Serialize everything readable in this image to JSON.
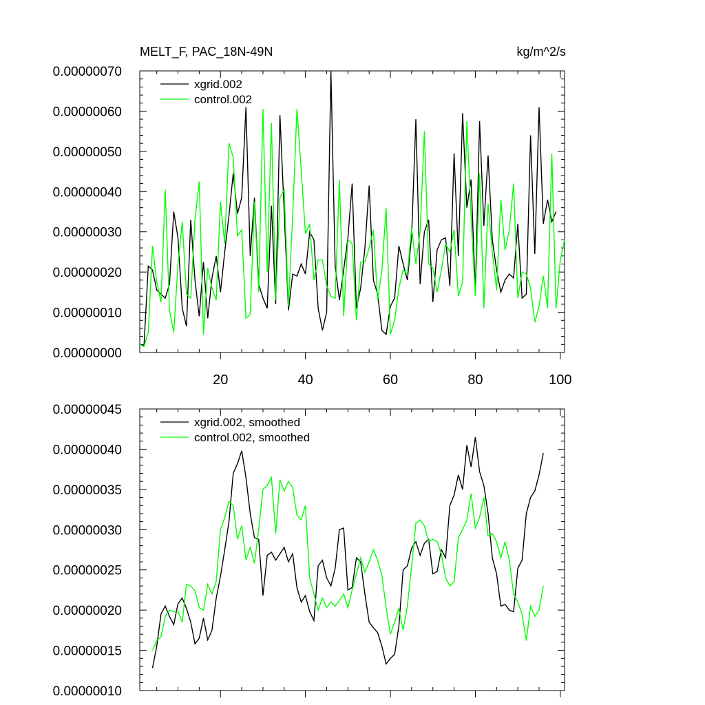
{
  "figure": {
    "title": "MELT_F, PAC_18N-49N",
    "units": "kg/m^2/s"
  },
  "chart_data": [
    {
      "type": "line",
      "title": "MELT_F, PAC_18N-49N",
      "units_label": "kg/m^2/s",
      "xlim": [
        1,
        101
      ],
      "ylim": [
        0,
        7e-07
      ],
      "xticks": [
        20,
        40,
        60,
        80,
        100
      ],
      "xtick_labels": [
        "20",
        "40",
        "60",
        "80",
        "100"
      ],
      "yticks": [
        0,
        1e-07,
        2e-07,
        3e-07,
        4e-07,
        5e-07,
        6e-07,
        7e-07
      ],
      "ytick_labels": [
        "0.00000000",
        "0.00000010",
        "0.00000020",
        "0.00000030",
        "0.00000040",
        "0.00000050",
        "0.00000060",
        "0.00000070"
      ],
      "legend": "top-left",
      "x_start": 1,
      "series": [
        {
          "name": "xgrid.002",
          "color": "#000000",
          "values": [
            2e-08,
            1.8e-08,
            2.15e-07,
            2.05e-07,
            1.55e-07,
            1.45e-07,
            1.35e-07,
            1.7e-07,
            3.5e-07,
            2.85e-07,
            1.1e-07,
            6.5e-08,
            3.3e-07,
            1.8e-07,
            9e-08,
            2.25e-07,
            8.5e-08,
            1.85e-07,
            2.4e-07,
            1.5e-07,
            2.5e-07,
            3.4e-07,
            4.45e-07,
            3.45e-07,
            3.85e-07,
            6.1e-07,
            2.4e-07,
            3.85e-07,
            1.7e-07,
            1.35e-07,
            1.1e-07,
            3.65e-07,
            1.2e-07,
            5.9e-07,
            3.5e-07,
            1.05e-07,
            1.95e-07,
            1.9e-07,
            2.2e-07,
            1.95e-07,
            3e-07,
            2.8e-07,
            1.1e-07,
            5.5e-08,
            1e-07,
            7e-07,
            2.15e-07,
            1.3e-07,
            2.05e-07,
            2.85e-07,
            4.2e-07,
            1.1e-07,
            1.6e-07,
            2.6e-07,
            4.15e-07,
            1.8e-07,
            1.45e-07,
            5.5e-08,
            4.5e-08,
            1.15e-07,
            1.35e-07,
            2.65e-07,
            2.2e-07,
            1.8e-07,
            2.9e-07,
            5.8e-07,
            1.7e-07,
            3e-07,
            3.3e-07,
            1.25e-07,
            2.55e-07,
            2.8e-07,
            2.85e-07,
            1.65e-07,
            4.95e-07,
            2.4e-07,
            5.95e-07,
            3.6e-07,
            4.3e-07,
            1.5e-07,
            5.75e-07,
            3.15e-07,
            4.9e-07,
            2.8e-07,
            2.05e-07,
            1.5e-07,
            1.8e-07,
            1.95e-07,
            1.85e-07,
            3.2e-07,
            1.35e-07,
            1.45e-07,
            5.4e-07,
            2.45e-07,
            6.1e-07,
            3.2e-07,
            3.8e-07,
            3.25e-07,
            3.5e-07
          ]
        },
        {
          "name": "control.002",
          "color": "#00ff00",
          "values": [
            2e-08,
            1.5e-08,
            5e-08,
            2.65e-07,
            1.75e-07,
            1.25e-07,
            4.05e-07,
            1.05e-07,
            5e-08,
            2.2e-07,
            3.25e-07,
            1.45e-07,
            1.35e-07,
            3.3e-07,
            4.25e-07,
            4.5e-08,
            2.1e-07,
            1.6e-07,
            1.3e-07,
            3.75e-07,
            2.7e-07,
            5.2e-07,
            4.85e-07,
            2.9e-07,
            3.05e-07,
            8.5e-08,
            9.5e-08,
            3.75e-07,
            1.5e-07,
            6.05e-07,
            2e-07,
            5.7e-07,
            1.3e-07,
            3.85e-07,
            4.05e-07,
            1.15e-07,
            3.4e-07,
            6.05e-07,
            4.55e-07,
            2.95e-07,
            3.2e-07,
            1.8e-07,
            2.3e-07,
            2.3e-07,
            1.65e-07,
            1.4e-07,
            1.35e-07,
            4.3e-07,
            9e-08,
            2.8e-07,
            2.7e-07,
            8e-08,
            2.25e-07,
            2.25e-07,
            2.6e-07,
            3.05e-07,
            1.3e-07,
            2.05e-07,
            3.6e-07,
            4.5e-08,
            8e-08,
            1.6e-07,
            2.05e-07,
            1.95e-07,
            3.1e-07,
            2.2e-07,
            3e-07,
            5.5e-07,
            2.2e-07,
            2.1e-07,
            1.5e-07,
            2.05e-07,
            2.7e-07,
            2.5e-07,
            3.05e-07,
            1.4e-07,
            1.75e-07,
            5.75e-07,
            3.35e-07,
            1.4e-07,
            4.45e-07,
            1.1e-07,
            3.7e-07,
            2.5e-07,
            1.55e-07,
            3.8e-07,
            2.55e-07,
            3.05e-07,
            4.2e-07,
            1.35e-07,
            2e-07,
            1.95e-07,
            1.6e-07,
            7.5e-08,
            1.15e-07,
            1.9e-07,
            1.1e-07,
            4.95e-07,
            1.1e-07,
            2.3e-07,
            2.8e-07
          ]
        }
      ]
    },
    {
      "type": "line",
      "xlim": [
        1,
        101
      ],
      "ylim": [
        1e-07,
        4.5e-07
      ],
      "xticks": [
        20,
        40,
        60,
        80,
        100
      ],
      "yticks": [
        1e-07,
        1.5e-07,
        2e-07,
        2.5e-07,
        3e-07,
        3.5e-07,
        4e-07,
        4.5e-07
      ],
      "ytick_labels": [
        "0.00000010",
        "0.00000015",
        "0.00000020",
        "0.00000025",
        "0.00000030",
        "0.00000035",
        "0.00000040",
        "0.00000045"
      ],
      "legend": "top-left",
      "x_start": 4,
      "series": [
        {
          "name": "xgrid.002, smoothed",
          "color": "#000000",
          "values": [
            1.28e-07,
            1.55e-07,
            1.95e-07,
            2.05e-07,
            1.92e-07,
            1.82e-07,
            2.08e-07,
            2.15e-07,
            2.02e-07,
            1.85e-07,
            1.58e-07,
            1.65e-07,
            1.9e-07,
            1.63e-07,
            1.75e-07,
            2.15e-07,
            2.42e-07,
            2.75e-07,
            3.1e-07,
            3.7e-07,
            3.82e-07,
            3.98e-07,
            3.65e-07,
            3.2e-07,
            2.9e-07,
            2.88e-07,
            2.18e-07,
            2.68e-07,
            2.72e-07,
            2.62e-07,
            2.7e-07,
            2.78e-07,
            2.6e-07,
            2.7e-07,
            2.28e-07,
            2.1e-07,
            2.18e-07,
            1.98e-07,
            1.87e-07,
            2.55e-07,
            2.62e-07,
            2.4e-07,
            2.3e-07,
            2.52e-07,
            3e-07,
            3.02e-07,
            2.25e-07,
            2.28e-07,
            2.65e-07,
            2.6e-07,
            2.2e-07,
            1.85e-07,
            1.78e-07,
            1.72e-07,
            1.55e-07,
            1.33e-07,
            1.4e-07,
            1.45e-07,
            1.8e-07,
            2.5e-07,
            2.55e-07,
            2.77e-07,
            2.85e-07,
            2.68e-07,
            2.83e-07,
            2.88e-07,
            2.45e-07,
            2.48e-07,
            2.75e-07,
            2.65e-07,
            3.3e-07,
            3.43e-07,
            3.68e-07,
            3.5e-07,
            4.05e-07,
            3.78e-07,
            4.15e-07,
            3.72e-07,
            3.55e-07,
            3.2e-07,
            2.65e-07,
            2.45e-07,
            2.05e-07,
            2.07e-07,
            2e-07,
            1.98e-07,
            2.52e-07,
            2.62e-07,
            3.2e-07,
            3.4e-07,
            3.48e-07,
            3.68e-07,
            3.95e-07
          ]
        },
        {
          "name": "control.002, smoothed",
          "color": "#00ff00",
          "values": [
            1.5e-07,
            1.62e-07,
            1.67e-07,
            1.92e-07,
            2e-07,
            1.98e-07,
            1.98e-07,
            1.85e-07,
            2.32e-07,
            2.3e-07,
            2.24e-07,
            2.03e-07,
            2e-07,
            2.32e-07,
            2.2e-07,
            2.36e-07,
            3e-07,
            3.15e-07,
            3.35e-07,
            3.3e-07,
            2.88e-07,
            3.05e-07,
            2.62e-07,
            2.78e-07,
            2.58e-07,
            3e-07,
            3.5e-07,
            3.55e-07,
            3.65e-07,
            2.95e-07,
            3.62e-07,
            3.48e-07,
            3.6e-07,
            3.52e-07,
            3.18e-07,
            3.12e-07,
            3.3e-07,
            2.4e-07,
            2.2e-07,
            2e-07,
            2.15e-07,
            2.03e-07,
            2.1e-07,
            2.05e-07,
            2.12e-07,
            2.2e-07,
            2.03e-07,
            2.25e-07,
            2.45e-07,
            2.65e-07,
            2.47e-07,
            2.6e-07,
            2.75e-07,
            2.62e-07,
            2.43e-07,
            2.03e-07,
            1.7e-07,
            1.85e-07,
            2.02e-07,
            1.75e-07,
            2.05e-07,
            2.55e-07,
            3.08e-07,
            3.12e-07,
            3.05e-07,
            2.85e-07,
            2.88e-07,
            2.85e-07,
            2.7e-07,
            2.4e-07,
            2.3e-07,
            2.35e-07,
            2.9e-07,
            3e-07,
            3.12e-07,
            3.45e-07,
            3.02e-07,
            3.15e-07,
            3.4e-07,
            2.92e-07,
            2.95e-07,
            2.85e-07,
            2.65e-07,
            2.85e-07,
            2.62e-07,
            2.2e-07,
            2.1e-07,
            1.95e-07,
            1.62e-07,
            2.05e-07,
            1.92e-07,
            2e-07,
            2.3e-07
          ]
        }
      ]
    }
  ]
}
